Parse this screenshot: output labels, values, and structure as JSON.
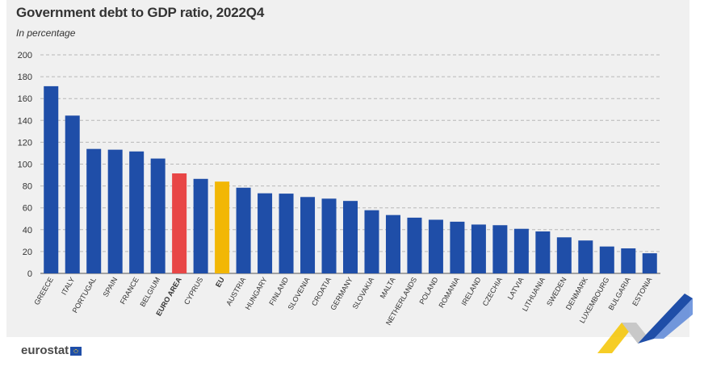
{
  "header": {
    "title": "Government debt to GDP ratio, 2022Q4",
    "subtitle": "In percentage"
  },
  "footer": {
    "logo_text": "eurostat"
  },
  "colors": {
    "country": "#1f4ea8",
    "euro_area": "#e84646",
    "eu": "#f2b705",
    "grid": "#b8b8b8",
    "panel": "#f0f0f0"
  },
  "chart_data": {
    "type": "bar",
    "title": "Government debt to GDP ratio, 2022Q4",
    "subtitle": "In percentage",
    "ylim": [
      0,
      200
    ],
    "yticks": [
      0,
      20,
      40,
      60,
      80,
      100,
      120,
      140,
      160,
      180,
      200
    ],
    "grid": true,
    "categories": [
      "GREECE",
      "ITALY",
      "PORTUGAL",
      "SPAIN",
      "FRANCE",
      "BELGIUM",
      "EURO AREA",
      "CYPRUS",
      "EU",
      "AUSTRIA",
      "HUNGARY",
      "FINLAND",
      "SLOVENIA",
      "CROATIA",
      "GERMANY",
      "SLOVAKIA",
      "MALTA",
      "NETHERLANDS",
      "POLAND",
      "ROMANIA",
      "IRELAND",
      "CZECHIA",
      "LATVIA",
      "LITHUANIA",
      "SWEDEN",
      "DENMARK",
      "LUXEMBOURG",
      "BULGARIA",
      "ESTONIA"
    ],
    "values": [
      171.3,
      144.4,
      113.9,
      113.2,
      111.6,
      105.1,
      91.5,
      86.5,
      84.0,
      78.4,
      73.3,
      73.0,
      69.9,
      68.4,
      66.3,
      57.8,
      53.4,
      51.0,
      49.1,
      47.3,
      44.7,
      44.1,
      40.8,
      38.4,
      33.0,
      30.1,
      24.6,
      22.9,
      18.4
    ],
    "highlight": {
      "EURO AREA": "euro_area",
      "EU": "eu"
    }
  }
}
